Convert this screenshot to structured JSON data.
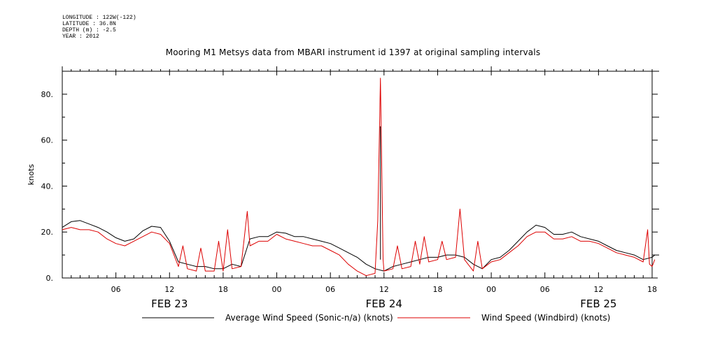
{
  "header": {
    "lines": [
      "LONGITUDE : 122W(-122)",
      "LATITUDE : 36.8N",
      "DEPTH (m) : -2.5",
      "YEAR : 2012"
    ]
  },
  "title": "Mooring M1 Metsys data from MBARI instrument id 1397 at original sampling intervals",
  "colors": {
    "average": "#000000",
    "windbird": "#dd0000"
  },
  "chart_data": {
    "type": "line",
    "title": "Mooring M1 Metsys data from MBARI instrument id 1397 at original sampling intervals",
    "xlabel": "",
    "ylabel": "knots",
    "x_unit": "hours since 2012-02-23 00:00",
    "xlim": [
      0,
      66
    ],
    "ylim": [
      0,
      90
    ],
    "yticks": [
      0,
      20,
      40,
      60,
      80
    ],
    "ytick_labels": [
      "0.",
      "20.",
      "40.",
      "60.",
      "80."
    ],
    "xticks": [
      6,
      12,
      18,
      24,
      30,
      36,
      42,
      48,
      54,
      60,
      66
    ],
    "xtick_labels": [
      "06",
      "12",
      "18",
      "00",
      "06",
      "12",
      "18",
      "00",
      "06",
      "12",
      "18"
    ],
    "date_labels": [
      {
        "hour": 12,
        "label": "FEB 23"
      },
      {
        "hour": 36,
        "label": "FEB 24"
      },
      {
        "hour": 60,
        "label": "FEB 25"
      }
    ],
    "series": [
      {
        "name": "Average Wind Speed (Sonic-n/a) (knots)",
        "points": [
          [
            0,
            22
          ],
          [
            1,
            24.5
          ],
          [
            2,
            25
          ],
          [
            3,
            23.5
          ],
          [
            4,
            22
          ],
          [
            5,
            20
          ],
          [
            6,
            17.5
          ],
          [
            7,
            16
          ],
          [
            8,
            17
          ],
          [
            9,
            20.5
          ],
          [
            10,
            22.5
          ],
          [
            11,
            22
          ],
          [
            12,
            16
          ],
          [
            13,
            7
          ],
          [
            14,
            6
          ],
          [
            15,
            5
          ],
          [
            16,
            5
          ],
          [
            17,
            4
          ],
          [
            18,
            4
          ],
          [
            19,
            6
          ],
          [
            20,
            5
          ],
          [
            21,
            17
          ],
          [
            22,
            18
          ],
          [
            23,
            18
          ],
          [
            24,
            20
          ],
          [
            25,
            19.5
          ],
          [
            26,
            18
          ],
          [
            27,
            18
          ],
          [
            28,
            17
          ],
          [
            29,
            16
          ],
          [
            30,
            15
          ],
          [
            31,
            13
          ],
          [
            32,
            11
          ],
          [
            33,
            9
          ],
          [
            34,
            6
          ],
          [
            35,
            4
          ],
          [
            36,
            3
          ],
          [
            37,
            5
          ],
          [
            38,
            6
          ],
          [
            39,
            7
          ],
          [
            40,
            8
          ],
          [
            41,
            9
          ],
          [
            42,
            9
          ],
          [
            43,
            10
          ],
          [
            44,
            10
          ],
          [
            45,
            9
          ],
          [
            46,
            6
          ],
          [
            47,
            4
          ],
          [
            48,
            8
          ],
          [
            49,
            9
          ],
          [
            50,
            12
          ],
          [
            51,
            16
          ],
          [
            52,
            20
          ],
          [
            53,
            23
          ],
          [
            54,
            22
          ],
          [
            55,
            19
          ],
          [
            56,
            19
          ],
          [
            57,
            20
          ],
          [
            58,
            18
          ],
          [
            59,
            17
          ],
          [
            60,
            16
          ],
          [
            61,
            14
          ],
          [
            62,
            12
          ],
          [
            63,
            11
          ],
          [
            64,
            10
          ],
          [
            65,
            8
          ],
          [
            66,
            9
          ],
          [
            66.3,
            10
          ]
        ]
      },
      {
        "name": "Wind Speed (Windbird) (knots)",
        "points": [
          [
            0,
            21
          ],
          [
            1,
            22
          ],
          [
            2,
            21
          ],
          [
            3,
            21
          ],
          [
            4,
            20
          ],
          [
            5,
            17
          ],
          [
            6,
            15
          ],
          [
            7,
            14
          ],
          [
            8,
            16
          ],
          [
            9,
            18
          ],
          [
            10,
            20
          ],
          [
            11,
            19
          ],
          [
            12,
            15
          ],
          [
            13,
            5
          ],
          [
            13.5,
            14
          ],
          [
            14,
            4
          ],
          [
            15,
            3
          ],
          [
            15.5,
            13
          ],
          [
            16,
            3
          ],
          [
            17,
            3
          ],
          [
            17.5,
            16
          ],
          [
            18,
            3
          ],
          [
            18.5,
            21
          ],
          [
            19,
            4
          ],
          [
            20,
            5
          ],
          [
            20.7,
            29
          ],
          [
            21,
            14
          ],
          [
            22,
            16
          ],
          [
            23,
            16
          ],
          [
            24,
            19
          ],
          [
            25,
            17
          ],
          [
            26,
            16
          ],
          [
            27,
            15
          ],
          [
            28,
            14
          ],
          [
            29,
            14
          ],
          [
            30,
            12
          ],
          [
            31,
            10
          ],
          [
            32,
            6
          ],
          [
            33,
            3
          ],
          [
            34,
            1
          ],
          [
            35,
            2
          ],
          [
            35.3,
            25
          ],
          [
            35.6,
            87
          ],
          [
            35.9,
            8
          ],
          [
            36,
            3
          ],
          [
            37,
            4
          ],
          [
            37.5,
            14
          ],
          [
            38,
            4
          ],
          [
            39,
            5
          ],
          [
            39.5,
            16
          ],
          [
            40,
            6
          ],
          [
            40.5,
            18
          ],
          [
            41,
            7
          ],
          [
            42,
            8
          ],
          [
            42.5,
            16
          ],
          [
            43,
            8
          ],
          [
            44,
            9
          ],
          [
            44.5,
            30
          ],
          [
            45,
            8
          ],
          [
            46,
            3
          ],
          [
            46.5,
            16
          ],
          [
            47,
            4
          ],
          [
            48,
            7
          ],
          [
            49,
            8
          ],
          [
            50,
            11
          ],
          [
            51,
            14
          ],
          [
            52,
            18
          ],
          [
            53,
            20
          ],
          [
            54,
            20
          ],
          [
            55,
            17
          ],
          [
            56,
            17
          ],
          [
            57,
            18
          ],
          [
            58,
            16
          ],
          [
            59,
            16
          ],
          [
            60,
            15
          ],
          [
            61,
            13
          ],
          [
            62,
            11
          ],
          [
            63,
            10
          ],
          [
            64,
            9
          ],
          [
            65,
            7
          ],
          [
            65.5,
            21
          ],
          [
            65.7,
            6
          ],
          [
            66,
            5
          ],
          [
            66.3,
            8
          ]
        ]
      }
    ],
    "spikes": [
      {
        "series": 0,
        "x": 35.6,
        "y": 66
      }
    ],
    "grid": false,
    "legend": "bottom"
  }
}
